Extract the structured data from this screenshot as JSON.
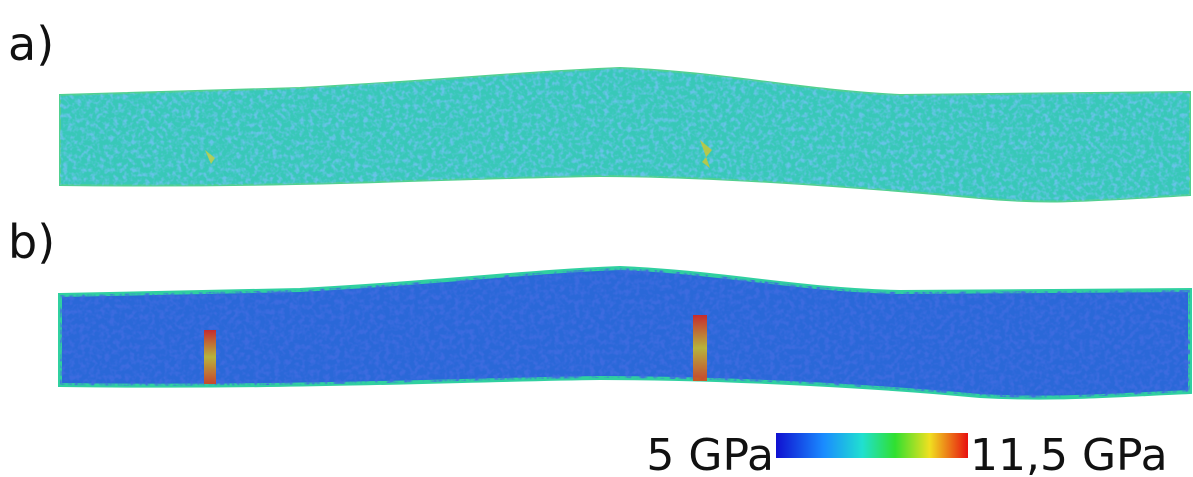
{
  "panels": [
    {
      "label": "a)"
    },
    {
      "label": "b)"
    }
  ],
  "colorbar": {
    "min_label": "5 GPa",
    "max_label": "11,5 GPa"
  }
}
